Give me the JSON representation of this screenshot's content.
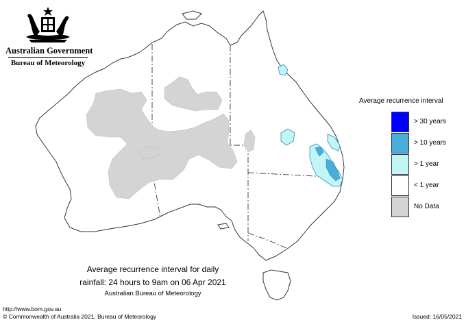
{
  "header": {
    "government": "Australian Government",
    "bureau": "Bureau of Meteorology"
  },
  "legend": {
    "title": "Average recurrence interval",
    "items": [
      {
        "label": "> 30 years",
        "color": "#0000ff"
      },
      {
        "label": "> 10 years",
        "color": "#4aaed9"
      },
      {
        "label": "> 1 year",
        "color": "#c2f5f5"
      },
      {
        "label": "< 1 year",
        "color": "#ffffff"
      },
      {
        "label": "No Data",
        "color": "#d4d4d4"
      }
    ]
  },
  "caption": {
    "line1": "Average recurrence interval for daily",
    "line2": "rainfall: 24 hours to 9am on 06 Apr 2021",
    "line3": "Australian Bureau of Meteorology"
  },
  "footer": {
    "url": "http://www.bom.gov.au",
    "copyright": "© Commonwealth of Australia 2021, Bureau of Meteorology",
    "issued": "Issued: 16/05/2021"
  },
  "colors": {
    "outline": "#333333",
    "nodata": "#d4d4d4",
    "over1": "#c2f5f5",
    "over10": "#4aaed9"
  }
}
